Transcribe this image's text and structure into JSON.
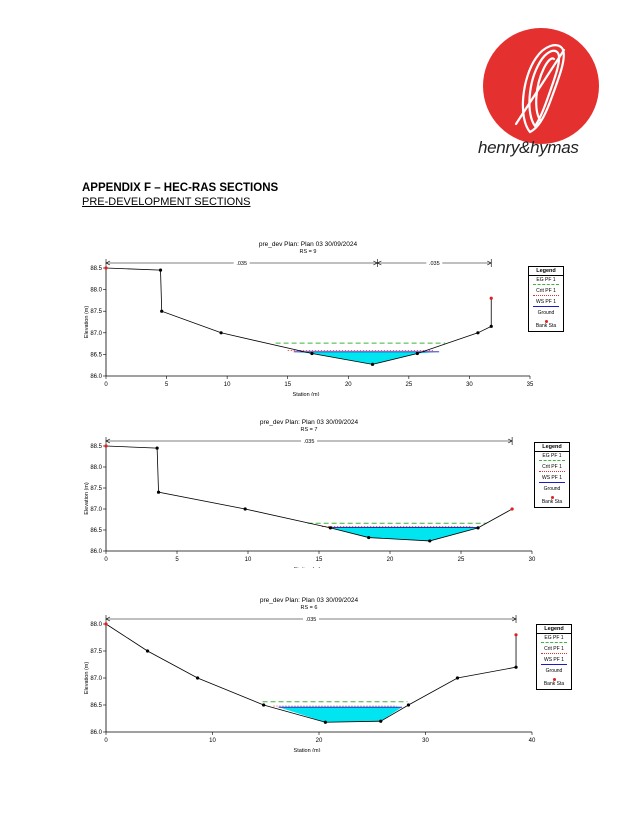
{
  "header": {
    "brand_name": "henry&hymas",
    "logo_colors": {
      "disc": "#e53030",
      "stroke": "#ffffff"
    }
  },
  "document": {
    "title": "APPENDIX F – HEC-RAS SECTIONS",
    "subtitle": "PRE-DEVELOPMENT SECTIONS"
  },
  "legend": {
    "title": "Legend",
    "items": [
      "EG PF 1",
      "Crit PF 1",
      "WS PF 1",
      "Ground",
      "Bank Sta"
    ]
  },
  "colors": {
    "ground": "#000000",
    "water_fill": "#00e5f0",
    "eg_line": "#3cb43c",
    "crit_line": "#e03030",
    "ws_line": "#1a1acc",
    "bank_sta": "#e02020"
  },
  "chart_data": [
    {
      "type": "line",
      "title": "pre_dev       Plan: Plan 03     30/09/2024",
      "rs_label": "RS = 9",
      "xlabel": "Station (m)",
      "ylabel": "Elevation (m)",
      "xlim": [
        0,
        35
      ],
      "ylim": [
        86.0,
        88.5
      ],
      "xticks": [
        "0",
        "5",
        "10",
        "15",
        "20",
        "25",
        "30",
        "35"
      ],
      "yticks": [
        "86.0",
        "86.5",
        "87.0",
        "87.5",
        "88.0",
        "88.5"
      ],
      "mannings": [
        ".035",
        ".035"
      ],
      "bank_stations": [
        0.0,
        22.4,
        31.8
      ],
      "ground": [
        [
          0,
          88.5
        ],
        [
          4.5,
          88.45
        ],
        [
          4.6,
          87.5
        ],
        [
          9.5,
          87.0
        ],
        [
          17.0,
          86.52
        ],
        [
          22.0,
          86.27
        ],
        [
          25.7,
          86.52
        ],
        [
          30.7,
          87.0
        ],
        [
          31.8,
          87.15
        ],
        [
          31.8,
          87.8
        ]
      ],
      "ws": 86.56,
      "eg": 86.76,
      "crit": 86.59,
      "water_extent": [
        15.5,
        27.5
      ]
    },
    {
      "type": "line",
      "title": "pre_dev       Plan: Plan 03     30/09/2024",
      "rs_label": "RS = 7",
      "xlabel": "Station (m)",
      "ylabel": "Elevation (m)",
      "xlim": [
        0,
        30
      ],
      "ylim": [
        86.0,
        88.5
      ],
      "xticks": [
        "0",
        "5",
        "10",
        "15",
        "20",
        "25",
        "30"
      ],
      "yticks": [
        "86.0",
        "86.5",
        "87.0",
        "87.5",
        "88.0",
        "88.5"
      ],
      "mannings": [
        ".035"
      ],
      "bank_stations": [
        0.0,
        28.6
      ],
      "ground": [
        [
          0,
          88.5
        ],
        [
          3.6,
          88.45
        ],
        [
          3.7,
          87.4
        ],
        [
          9.8,
          87.0
        ],
        [
          15.8,
          86.55
        ],
        [
          18.5,
          86.32
        ],
        [
          22.8,
          86.24
        ],
        [
          26.2,
          86.55
        ],
        [
          28.6,
          87.0
        ]
      ],
      "ws": 86.56,
      "eg": 86.66,
      "crit": 86.58,
      "water_extent": [
        15.7,
        26.3
      ]
    },
    {
      "type": "line",
      "title": "pre_dev       Plan: Plan 03     30/09/2024",
      "rs_label": "RS = 6",
      "xlabel": "Station (m)",
      "ylabel": "Elevation (m)",
      "xlim": [
        0,
        40
      ],
      "ylim": [
        86.0,
        88.0
      ],
      "xticks": [
        "0",
        "10",
        "20",
        "30",
        "40"
      ],
      "yticks": [
        "86.0",
        "86.5",
        "87.0",
        "87.5",
        "88.0"
      ],
      "mannings": [
        ".035"
      ],
      "bank_stations": [
        0.0,
        38.5
      ],
      "ground": [
        [
          0,
          88.0
        ],
        [
          3.9,
          87.5
        ],
        [
          8.6,
          87.0
        ],
        [
          14.8,
          86.5
        ],
        [
          20.6,
          86.18
        ],
        [
          25.8,
          86.2
        ],
        [
          28.4,
          86.5
        ],
        [
          33.0,
          87.0
        ],
        [
          38.5,
          87.2
        ],
        [
          38.5,
          87.8
        ]
      ],
      "ws": 86.46,
      "eg": 86.56,
      "crit": 86.48,
      "water_extent": [
        16.2,
        27.8
      ]
    }
  ]
}
